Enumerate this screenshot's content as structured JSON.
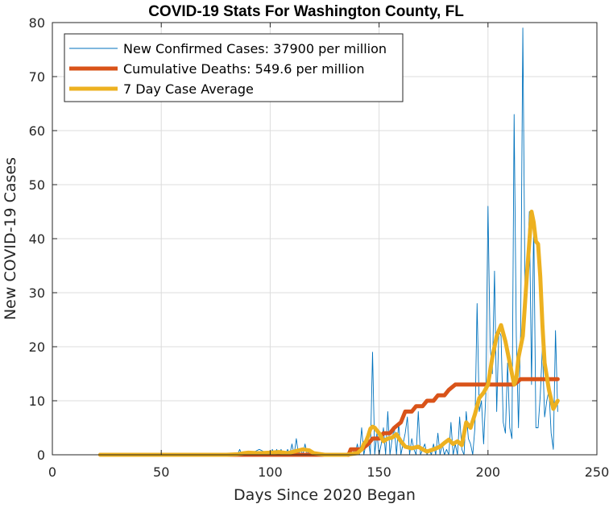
{
  "chart_data": {
    "type": "line",
    "title": "COVID-19 Stats For Washington County, FL",
    "xlabel": "Days Since 2020 Began",
    "ylabel": "New COVID-19 Cases",
    "xlim": [
      0,
      250
    ],
    "ylim": [
      0,
      80
    ],
    "xticks": [
      0,
      50,
      100,
      150,
      200,
      250
    ],
    "yticks": [
      0,
      10,
      20,
      30,
      40,
      50,
      60,
      70,
      80
    ],
    "grid": true,
    "legend_position": "top-left",
    "series": [
      {
        "name": "New Confirmed Cases: 37900 per million",
        "color": "#0072BD",
        "line_width": "thin",
        "x": [
          22,
          30,
          40,
          50,
          60,
          70,
          80,
          85,
          86,
          87,
          88,
          90,
          95,
          100,
          101,
          102,
          103,
          104,
          105,
          106,
          107,
          108,
          109,
          110,
          111,
          112,
          113,
          114,
          115,
          116,
          117,
          118,
          119,
          120,
          125,
          130,
          135,
          138,
          139,
          140,
          141,
          142,
          143,
          144,
          145,
          146,
          147,
          148,
          149,
          150,
          151,
          152,
          153,
          154,
          155,
          156,
          157,
          158,
          159,
          160,
          161,
          162,
          163,
          164,
          165,
          166,
          167,
          168,
          169,
          170,
          171,
          172,
          173,
          174,
          175,
          176,
          177,
          178,
          179,
          180,
          181,
          182,
          183,
          184,
          185,
          186,
          187,
          188,
          189,
          190,
          191,
          192,
          193,
          194,
          195,
          196,
          197,
          198,
          199,
          200,
          201,
          202,
          203,
          204,
          205,
          206,
          207,
          208,
          209,
          210,
          211,
          212,
          213,
          214,
          215,
          216,
          217,
          218,
          219,
          220,
          221,
          222,
          223,
          224,
          225,
          226,
          227,
          228,
          229,
          230,
          231,
          232
        ],
        "y": [
          0,
          0,
          0,
          0,
          0,
          0,
          0,
          0,
          1,
          0,
          0,
          0,
          1,
          0,
          1,
          0,
          1,
          0,
          1,
          0,
          0,
          1,
          0,
          2,
          0,
          3,
          0,
          1,
          0,
          2,
          0,
          1,
          0,
          0,
          0,
          0,
          0,
          1,
          0,
          2,
          0,
          5,
          0,
          2,
          3,
          0,
          19,
          0,
          4,
          0,
          2,
          5,
          0,
          8,
          0,
          3,
          5,
          0,
          6,
          0,
          2,
          4,
          7,
          0,
          3,
          1,
          0,
          8,
          0,
          1,
          2,
          0,
          1,
          0,
          2,
          0,
          4,
          0,
          2,
          0,
          1,
          0,
          6,
          0,
          2,
          0,
          7,
          1,
          0,
          8,
          3,
          2,
          0,
          5,
          28,
          8,
          10,
          2,
          11,
          46,
          20,
          15,
          34,
          8,
          23,
          22,
          6,
          4,
          17,
          5,
          3,
          63,
          22,
          5,
          23,
          79,
          30,
          35,
          45,
          13,
          43,
          5,
          5,
          11,
          20,
          7,
          10,
          12,
          4,
          1,
          23,
          8
        ]
      },
      {
        "name": "Cumulative Deaths: 549.6 per million",
        "color": "#D95319",
        "line_width": "thick",
        "x": [
          22,
          95,
          100,
          110,
          115,
          120,
          125,
          130,
          135,
          136,
          137,
          140,
          142,
          145,
          147,
          150,
          152,
          155,
          157,
          160,
          162,
          165,
          167,
          170,
          172,
          175,
          177,
          180,
          182,
          185,
          190,
          200,
          210,
          212,
          215,
          232
        ],
        "y": [
          0,
          0,
          0,
          0,
          0,
          0,
          0,
          0,
          0,
          0,
          1,
          1,
          1,
          2,
          3,
          3,
          4,
          4,
          5,
          6,
          8,
          8,
          9,
          9,
          10,
          10,
          11,
          11,
          12,
          13,
          13,
          13,
          13,
          13,
          14,
          14
        ]
      },
      {
        "name": "7 Day Case Average",
        "color": "#EDB120",
        "line_width": "thick",
        "x": [
          22,
          40,
          60,
          80,
          85,
          88,
          90,
          95,
          100,
          104,
          108,
          112,
          115,
          118,
          120,
          125,
          130,
          135,
          140,
          142,
          143,
          144,
          145,
          146,
          147,
          148,
          150,
          152,
          154,
          156,
          158,
          160,
          162,
          165,
          168,
          170,
          172,
          175,
          178,
          180,
          182,
          184,
          186,
          188,
          190,
          192,
          194,
          196,
          198,
          200,
          202,
          204,
          206,
          208,
          210,
          212,
          213,
          214,
          216,
          218,
          220,
          221,
          222,
          223,
          224,
          225,
          226,
          228,
          230,
          232
        ],
        "y": [
          0,
          0,
          0,
          0,
          0.1,
          0.3,
          0.4,
          0.3,
          0.4,
          0.5,
          0.3,
          0.7,
          1.0,
          0.8,
          0.3,
          0.0,
          0.0,
          0.0,
          0.3,
          1.0,
          2.0,
          2.5,
          3.5,
          4.8,
          5.2,
          5.0,
          4.0,
          2.5,
          3.0,
          3.2,
          3.8,
          2.5,
          1.5,
          1.2,
          1.5,
          1.0,
          0.6,
          1.0,
          1.5,
          2.2,
          2.8,
          2.0,
          2.5,
          1.8,
          6.0,
          5.0,
          7.5,
          10.5,
          11.5,
          13.0,
          18.0,
          22.0,
          24.0,
          21.0,
          17.0,
          13.0,
          14.0,
          18.0,
          22.0,
          34.0,
          45.0,
          43.0,
          39.5,
          39.0,
          33.0,
          24.0,
          17.0,
          12.0,
          8.5,
          10.0
        ]
      }
    ]
  }
}
